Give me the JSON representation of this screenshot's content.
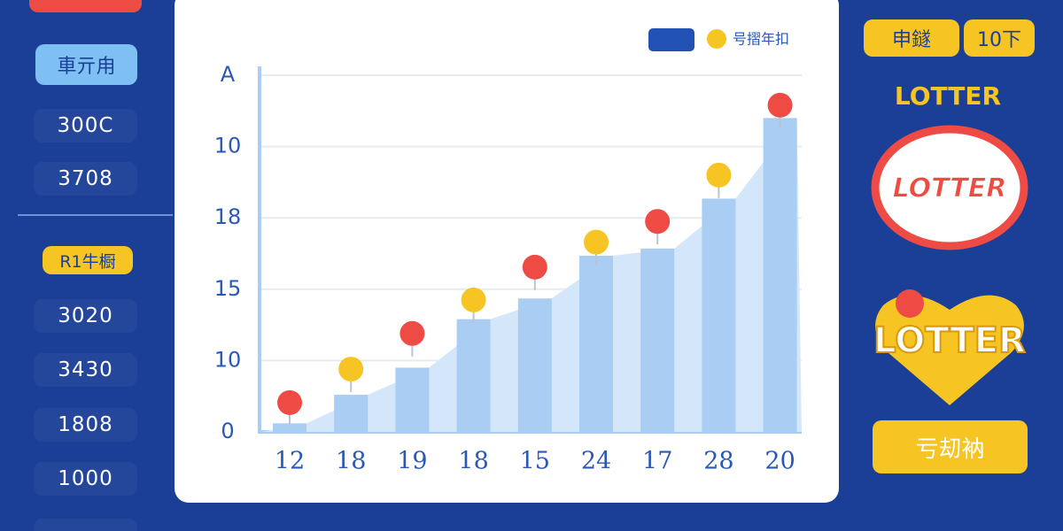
{
  "sidebar": {
    "button": "車亓甪",
    "items": [
      "300C",
      "3708"
    ],
    "badge": "R1牛橱",
    "items2": [
      "3020",
      "3430",
      "1808",
      "1000"
    ]
  },
  "chart_data": {
    "type": "bar",
    "categories": [
      "12",
      "18",
      "19",
      "18",
      "15",
      "24",
      "17",
      "28",
      "20"
    ],
    "values": [
      0.12,
      0.52,
      0.9,
      1.58,
      1.87,
      2.47,
      2.57,
      3.27,
      4.4
    ],
    "color": "#a9cdf3",
    "area_color": "#d3e6fa",
    "markers": {
      "name": "号摺年扣",
      "values": [
        0.41,
        0.88,
        1.38,
        1.85,
        2.31,
        2.66,
        2.95,
        3.6,
        4.58
      ],
      "colors": [
        "#ef4b45",
        "#f6c423",
        "#ef4b45",
        "#f6c423",
        "#ef4b45",
        "#f6c423",
        "#ef4b45",
        "#f6c423",
        "#ef4b45"
      ]
    },
    "legend_color": "#2251b4",
    "ylim": [
      0,
      5
    ],
    "yticks": [
      0,
      {
        "value": 1,
        "label": "10"
      },
      {
        "value": 2,
        "label": "15"
      },
      {
        "value": 3,
        "label": "18"
      },
      {
        "value": 4,
        "label": "10"
      },
      {
        "value": 5,
        "label": "A"
      }
    ],
    "grid": true
  },
  "right": {
    "buttons": [
      "申鐩",
      "10下"
    ],
    "title": "LOTTER",
    "logos": [
      "LOTTER",
      "LOTTER"
    ],
    "button": "亏刧衲"
  }
}
